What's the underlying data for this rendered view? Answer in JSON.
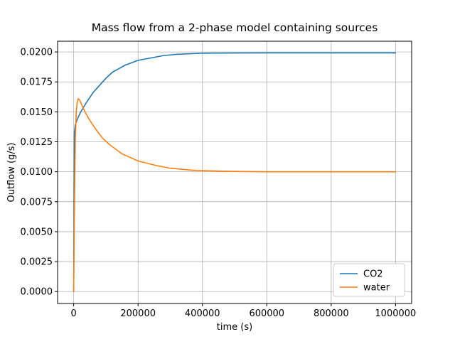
{
  "figure": {
    "background": "#ffffff"
  },
  "chart_data": {
    "type": "line",
    "title": "Mass flow from a 2-phase model containing sources",
    "xlabel": "time (s)",
    "ylabel": "Outflow (g/s)",
    "xlim": [
      -50000,
      1050000
    ],
    "ylim": [
      -0.000995,
      0.020895
    ],
    "x_ticks": [
      0,
      200000,
      400000,
      600000,
      800000,
      1000000
    ],
    "x_tick_labels": [
      "0",
      "200000",
      "400000",
      "600000",
      "800000",
      "1000000"
    ],
    "y_ticks": [
      0.0,
      0.0025,
      0.005,
      0.0075,
      0.01,
      0.0125,
      0.015,
      0.0175,
      0.02
    ],
    "y_tick_labels": [
      "0.0000",
      "0.0025",
      "0.0050",
      "0.0075",
      "0.0100",
      "0.0125",
      "0.0150",
      "0.0175",
      "0.0200"
    ],
    "grid": true,
    "grid_color": "#b0b0b0",
    "spine_color": "#000000",
    "legend_position": "lower right",
    "legend_border_color": "#cccccc",
    "series": [
      {
        "name": "CO2",
        "color": "#1f77b4",
        "points": [
          [
            0,
            0.0
          ],
          [
            2000,
            0.0132
          ],
          [
            5000,
            0.0139
          ],
          [
            10000,
            0.0143
          ],
          [
            20000,
            0.0149
          ],
          [
            40000,
            0.0158
          ],
          [
            60000,
            0.0166
          ],
          [
            80000,
            0.0172
          ],
          [
            100000,
            0.0178
          ],
          [
            120000,
            0.0183
          ],
          [
            140000,
            0.0186
          ],
          [
            160000,
            0.0189
          ],
          [
            180000,
            0.0191
          ],
          [
            200000,
            0.0193
          ],
          [
            240000,
            0.0195
          ],
          [
            280000,
            0.0197
          ],
          [
            320000,
            0.0198
          ],
          [
            360000,
            0.01985
          ],
          [
            400000,
            0.0199
          ],
          [
            500000,
            0.01991
          ],
          [
            600000,
            0.01992
          ],
          [
            700000,
            0.01992
          ],
          [
            800000,
            0.01992
          ],
          [
            900000,
            0.01992
          ],
          [
            1000000,
            0.01992
          ]
        ]
      },
      {
        "name": "water",
        "color": "#ff7f0e",
        "points": [
          [
            0,
            0.0
          ],
          [
            2000,
            0.006
          ],
          [
            5000,
            0.0125
          ],
          [
            8000,
            0.015
          ],
          [
            11000,
            0.0158
          ],
          [
            14000,
            0.0161
          ],
          [
            18000,
            0.016
          ],
          [
            25000,
            0.0156
          ],
          [
            35000,
            0.015
          ],
          [
            50000,
            0.0143
          ],
          [
            70000,
            0.0135
          ],
          [
            90000,
            0.0128
          ],
          [
            110000,
            0.0123
          ],
          [
            130000,
            0.0119
          ],
          [
            150000,
            0.0115
          ],
          [
            175000,
            0.0112
          ],
          [
            200000,
            0.0109
          ],
          [
            230000,
            0.0107
          ],
          [
            260000,
            0.0105
          ],
          [
            300000,
            0.0103
          ],
          [
            340000,
            0.0102
          ],
          [
            380000,
            0.0101
          ],
          [
            420000,
            0.01008
          ],
          [
            500000,
            0.01003
          ],
          [
            600000,
            0.01
          ],
          [
            700000,
            0.01
          ],
          [
            800000,
            0.01
          ],
          [
            900000,
            0.01
          ],
          [
            1000000,
            0.01
          ]
        ]
      }
    ]
  }
}
